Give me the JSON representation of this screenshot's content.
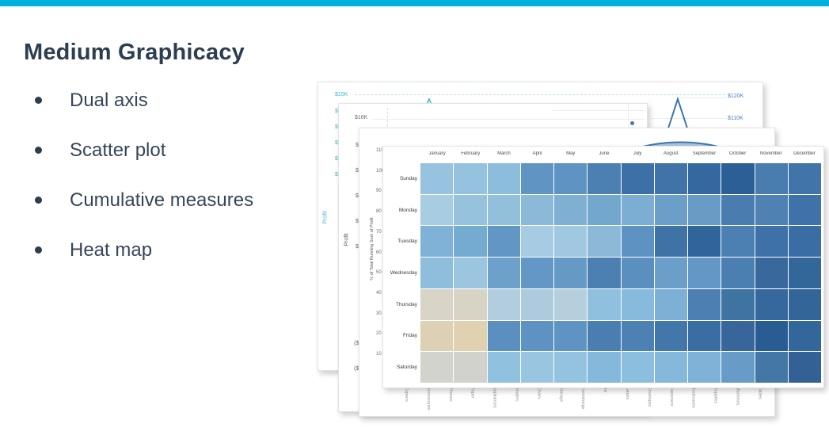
{
  "slide": {
    "accent_bar_color": "#00b0dc",
    "title": "Medium Graphicacy",
    "bullets": [
      {
        "label": "Dual axis"
      },
      {
        "label": "Scatter plot"
      },
      {
        "label": "Cumulative measures"
      },
      {
        "label": "Heat map"
      }
    ]
  },
  "cards": {
    "dual_axis": {
      "y_axis_top_tick": "$15K",
      "y_axis_partial_ticks": [
        "$",
        "$",
        "$",
        "$",
        "$"
      ],
      "y_axis_title": "Profit",
      "right_axis_ticks": [
        "$120K",
        "$110K"
      ],
      "accent_color": "#3fb3d2",
      "line_color": "#3b76ac"
    },
    "scatter": {
      "y_axis_top_tick": "$16K",
      "y_axis_partial_ticks": [
        "$",
        "$",
        "$",
        "$",
        "$"
      ],
      "y_axis_negative_partial_ticks": [
        "($",
        "($"
      ],
      "y_axis_title": "Profit",
      "dot_color": "#4a74a4"
    },
    "cumulative": {
      "y_axis_title": "% of Total Running Sum of Profit",
      "curve_color": "#3b76ac",
      "fill_color": "#a9c3dc"
    }
  },
  "chart_data": [
    {
      "type": "line",
      "name": "dual-axis-line-chart",
      "ylabel": "Profit",
      "left_y_ticks_visible": [
        "$15K"
      ],
      "right_y_ticks_visible": [
        "$120K",
        "$110K"
      ],
      "visible_features": [
        "teal spike near left",
        "blue peak near right at ~$120K level"
      ]
    },
    {
      "type": "scatter",
      "name": "scatter-plot",
      "ylabel": "Profit",
      "left_y_ticks_visible": [
        "$16K"
      ],
      "visible_points": 1
    },
    {
      "type": "area",
      "name": "cumulative-running-sum",
      "ylabel": "% of Total Running Sum of Profit",
      "y_ticks": [
        "110",
        "100",
        "90",
        "80",
        "70",
        "60",
        "50",
        "40",
        "30",
        "20",
        "10"
      ],
      "x_categories": [
        "Copiers",
        "Accessories",
        "Phones",
        "Paper",
        "Appliances",
        "Binders",
        "Chairs",
        "Storage",
        "Furnishings",
        "Art",
        "Labels",
        "Envelopes",
        "Fasteners",
        "Bookcases",
        "Supplies",
        "Machines",
        "Tables"
      ],
      "visible_features": [
        "broad shallow area crest visible between cards"
      ]
    },
    {
      "type": "heatmap",
      "name": "profit-heatmap",
      "columns": [
        "January",
        "February",
        "March",
        "April",
        "May",
        "June",
        "July",
        "August",
        "September",
        "October",
        "November",
        "December"
      ],
      "rows": [
        "Sunday",
        "Monday",
        "Tuesday",
        "Wednesday",
        "Thursday",
        "Friday",
        "Saturday"
      ],
      "cell_colors": [
        [
          "#97c3e0",
          "#95c2df",
          "#8dbddc",
          "#6095c3",
          "#5e93c3",
          "#4c80b2",
          "#3d70a6",
          "#4173a9",
          "#35689f",
          "#2c5f96",
          "#4a7daf",
          "#4174a9"
        ],
        [
          "#a8cde3",
          "#97c2de",
          "#92bfdc",
          "#8db9d9",
          "#7fb0d3",
          "#74a7ce",
          "#7cadd2",
          "#6b9fc9",
          "#689cc7",
          "#4a7cb0",
          "#4f81b3",
          "#3f72a8"
        ],
        [
          "#7fb2d6",
          "#76abd1",
          "#6196c5",
          "#a6cbe2",
          "#a0c8e0",
          "#8db9d9",
          "#5d92c2",
          "#3f72a5",
          "#30659c",
          "#4d80b2",
          "#3e71a7",
          "#3a6da3"
        ],
        [
          "#8fbedd",
          "#9cc5e0",
          "#6da1cb",
          "#6397c5",
          "#6599c6",
          "#4d80b2",
          "#5b8fc0",
          "#6b9fc9",
          "#6397c5",
          "#4c7fb1",
          "#38689c",
          "#336699"
        ],
        [
          "#d8d4c7",
          "#d7d3c5",
          "#b2cddd",
          "#aecbdd",
          "#b5cfdd",
          "#8fc0de",
          "#88bade",
          "#7db0d4",
          "#4c80b2",
          "#3f73a2",
          "#35689c",
          "#336598"
        ],
        [
          "#ddd0b5",
          "#e0d2b0",
          "#5b8fc0",
          "#5d92c2",
          "#5e93c3",
          "#4a7db0",
          "#4d81b3",
          "#4377ab",
          "#3a6da3",
          "#38659a",
          "#2a5c94",
          "#33669b"
        ],
        [
          "#d2d3cc",
          "#d1d2cb",
          "#90c1df",
          "#99c5e0",
          "#94c3df",
          "#85b8da",
          "#8cbede",
          "#85b8db",
          "#7fb2d7",
          "#689cc8",
          "#4377a6",
          "#336195"
        ]
      ]
    }
  ]
}
